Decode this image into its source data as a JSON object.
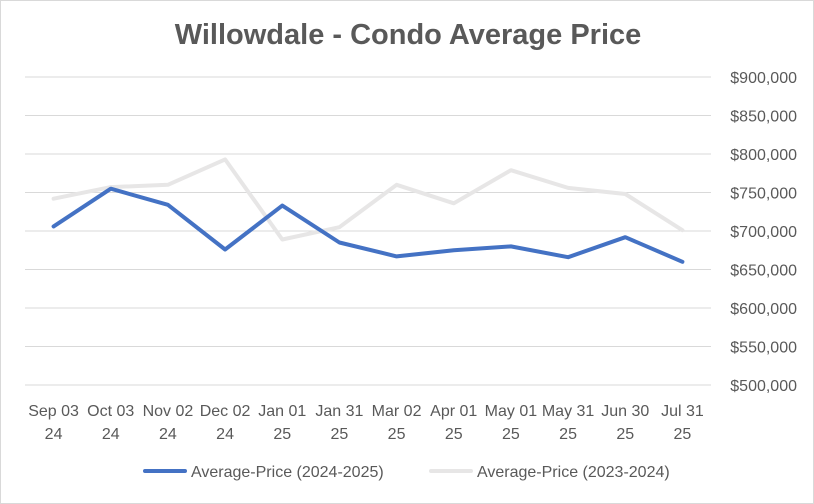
{
  "chart_data": {
    "type": "line",
    "title": "Willowdale - Condo Average Price",
    "xlabel": "",
    "ylabel": "",
    "y_axis_side": "right",
    "ylim": [
      500000,
      900000
    ],
    "yticks": [
      500000,
      550000,
      600000,
      650000,
      700000,
      750000,
      800000,
      850000,
      900000
    ],
    "ytick_labels": [
      "$500,000",
      "$550,000",
      "$600,000",
      "$650,000",
      "$700,000",
      "$750,000",
      "$800,000",
      "$850,000",
      "$900,000"
    ],
    "categories": [
      [
        "Sep 03",
        "24"
      ],
      [
        "Oct 03",
        "24"
      ],
      [
        "Nov 02",
        "24"
      ],
      [
        "Dec 02",
        "24"
      ],
      [
        "Jan 01",
        "25"
      ],
      [
        "Jan 31",
        "25"
      ],
      [
        "Mar 02",
        "25"
      ],
      [
        "Apr 01",
        "25"
      ],
      [
        "May 01",
        "25"
      ],
      [
        "May 31",
        "25"
      ],
      [
        "Jun 30",
        "25"
      ],
      [
        "Jul 31",
        "25"
      ]
    ],
    "grid": true,
    "legend_position": "bottom",
    "series": [
      {
        "name": "Average-Price (2023-2024)",
        "color": "#e7e6e6",
        "values": [
          742000,
          757000,
          760000,
          793000,
          689000,
          705000,
          760000,
          736000,
          779000,
          756000,
          748000,
          701000
        ]
      },
      {
        "name": "Average-Price (2024-2025)",
        "color": "#4472c4",
        "values": [
          706000,
          755000,
          734000,
          676000,
          733000,
          685000,
          667000,
          675000,
          680000,
          666000,
          692000,
          660000
        ]
      }
    ],
    "legend_order": [
      "Average-Price (2024-2025)",
      "Average-Price (2023-2024)"
    ]
  }
}
